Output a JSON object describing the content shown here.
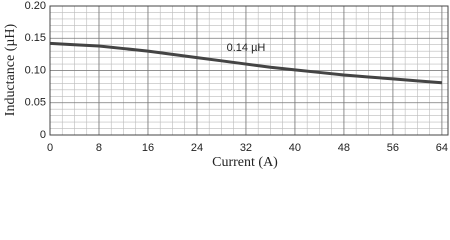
{
  "chart_data": {
    "type": "line",
    "xlabel": "Current (A)",
    "ylabel": "Inductance (µH)",
    "annotation": "0.14 µH",
    "x": [
      0,
      4,
      8,
      12,
      16,
      20,
      24,
      28,
      32,
      36,
      40,
      44,
      48,
      52,
      56,
      60,
      64
    ],
    "series": [
      {
        "color": "#444444",
        "values": [
          0.142,
          0.14,
          0.138,
          0.134,
          0.13,
          0.125,
          0.12,
          0.115,
          0.11,
          0.105,
          0.101,
          0.097,
          0.093,
          0.09,
          0.087,
          0.084,
          0.081
        ]
      }
    ],
    "xlim": [
      0,
      65
    ],
    "xticks": [
      0,
      8,
      16,
      24,
      32,
      40,
      48,
      56,
      64
    ],
    "ylim": [
      0,
      0.2
    ],
    "yticks": [
      0,
      0.05,
      {
        "value": 0.1,
        "label": "0.10"
      },
      0.15,
      {
        "value": 0.2,
        "label": "0.20"
      }
    ],
    "grid": true
  }
}
